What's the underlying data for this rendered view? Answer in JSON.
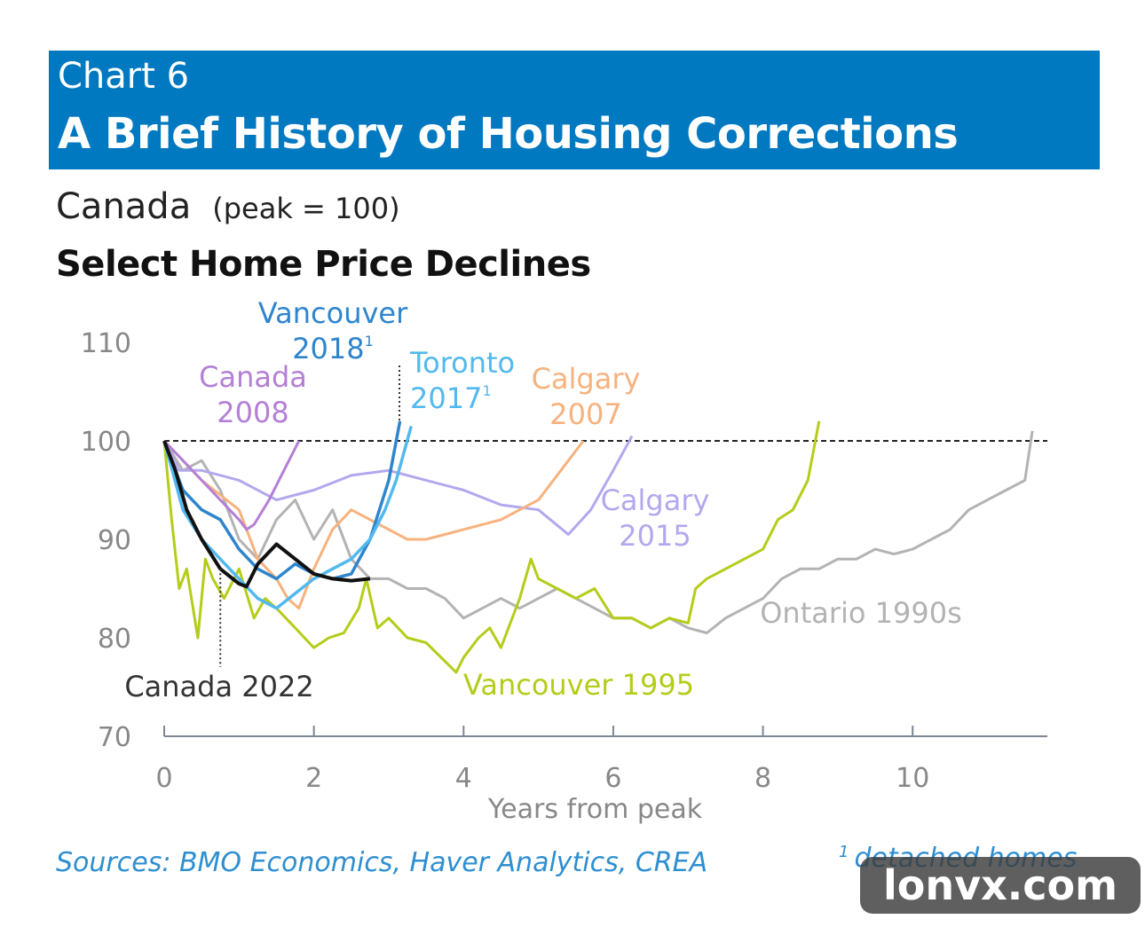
{
  "header": {
    "chart_number": "Chart 6",
    "title": "A Brief History of Housing Corrections"
  },
  "subtitle": {
    "region": "Canada",
    "note": "(peak = 100)"
  },
  "subtitle2": "Select Home Price Declines",
  "footer": {
    "sources": "Sources: BMO Economics, Haver Analytics, CREA",
    "footnote_mark": "1",
    "footnote": "detached homes"
  },
  "watermark": "lonvx.com",
  "colors": {
    "banner": "#0079c1",
    "vancouver_1995": "#b5cc1a",
    "ontario_1990s": "#b3b3b3",
    "calgary_2015": "#b3a8ee",
    "calgary_2007": "#f7b27d",
    "canada_2008": "#b47fd6",
    "vancouver_2018": "#2f85cc",
    "toronto_2017": "#52b9ee",
    "canada_2022": "#111111"
  },
  "chart_data": {
    "type": "line",
    "title": "Select Home Price Declines",
    "xlabel": "Years from peak",
    "ylabel": "",
    "xlim": [
      0,
      11.8
    ],
    "ylim": [
      70,
      110
    ],
    "x_ticks": [
      0,
      2,
      4,
      6,
      8,
      10
    ],
    "y_ticks": [
      70,
      80,
      90,
      100,
      110
    ],
    "x_tick_labels": [
      "0",
      "2",
      "4",
      "6",
      "8",
      "10"
    ],
    "y_tick_labels": [
      "70",
      "80",
      "90",
      "100",
      "110"
    ],
    "reference_line": {
      "y": 100,
      "style": "dashed"
    },
    "annotations": [
      {
        "series": "Canada 2022",
        "note": "dotted leader to line"
      },
      {
        "series": "Vancouver 2018",
        "note": "dotted leader to line"
      }
    ],
    "series": [
      {
        "name": "Ontario 1990s",
        "label_lines": [
          "Ontario 1990s"
        ],
        "footnote": "",
        "x": [
          0,
          0.25,
          0.5,
          0.75,
          1,
          1.25,
          1.5,
          1.75,
          2,
          2.25,
          2.5,
          2.75,
          3,
          3.25,
          3.5,
          3.75,
          4,
          4.25,
          4.5,
          4.75,
          5,
          5.25,
          5.5,
          5.75,
          6,
          6.25,
          6.5,
          6.75,
          7,
          7.25,
          7.5,
          7.75,
          8,
          8.25,
          8.5,
          8.75,
          9,
          9.25,
          9.5,
          9.75,
          10,
          10.25,
          10.5,
          10.75,
          11,
          11.25,
          11.5,
          11.6
        ],
        "y": [
          100,
          97,
          98,
          95,
          90,
          88,
          92,
          94,
          90,
          93,
          88,
          86,
          86,
          85,
          85,
          84,
          82,
          83,
          84,
          83,
          84,
          85,
          84,
          83,
          82,
          82,
          81,
          82,
          81,
          80.5,
          82,
          83,
          84,
          86,
          87,
          87,
          88,
          88,
          89,
          88.5,
          89,
          90,
          91,
          93,
          94,
          95,
          96,
          101
        ]
      },
      {
        "name": "Vancouver 1995",
        "label_lines": [
          "Vancouver 1995"
        ],
        "footnote": "",
        "x": [
          0,
          0.1,
          0.2,
          0.3,
          0.45,
          0.55,
          0.65,
          0.8,
          1,
          1.2,
          1.35,
          1.5,
          1.75,
          2,
          2.2,
          2.4,
          2.6,
          2.7,
          2.85,
          3,
          3.25,
          3.5,
          3.7,
          3.9,
          4,
          4.2,
          4.35,
          4.5,
          4.75,
          4.9,
          5,
          5.25,
          5.5,
          5.75,
          6,
          6.25,
          6.5,
          6.75,
          7,
          7.1,
          7.25,
          7.5,
          7.75,
          8,
          8.2,
          8.4,
          8.6,
          8.75
        ],
        "y": [
          100,
          92,
          85,
          87,
          80,
          88,
          86,
          84,
          87,
          82,
          84,
          83,
          81,
          79,
          80,
          80.5,
          83,
          86,
          81,
          82,
          80,
          79.5,
          78,
          76.5,
          78,
          80,
          81,
          79,
          84,
          88,
          86,
          85,
          84,
          85,
          82,
          82,
          81,
          82,
          81.5,
          85,
          86,
          87,
          88,
          89,
          92,
          93,
          96,
          102
        ]
      },
      {
        "name": "Calgary 2015",
        "label_lines": [
          "Calgary",
          "2015"
        ],
        "footnote": "",
        "x": [
          0,
          0.2,
          0.5,
          1,
          1.5,
          2,
          2.5,
          3,
          3.5,
          4,
          4.5,
          5,
          5.4,
          5.7,
          6,
          6.25
        ],
        "y": [
          100,
          97,
          97,
          96,
          94,
          95,
          96.5,
          97,
          96,
          95,
          93.5,
          93,
          90.5,
          93,
          97,
          100.5
        ]
      },
      {
        "name": "Calgary 2007",
        "label_lines": [
          "Calgary",
          "2007"
        ],
        "footnote": "",
        "x": [
          0,
          0.5,
          1,
          1.25,
          1.5,
          1.65,
          1.8,
          2,
          2.25,
          2.5,
          2.75,
          3,
          3.25,
          3.5,
          4,
          4.5,
          5,
          5.3,
          5.6
        ],
        "y": [
          100,
          96,
          93,
          88,
          86,
          84,
          83,
          87,
          91,
          93,
          92,
          91,
          90,
          90,
          91,
          92,
          94,
          97,
          100
        ]
      },
      {
        "name": "Canada 2008",
        "label_lines": [
          "Canada",
          "2008"
        ],
        "footnote": "",
        "x": [
          0,
          0.25,
          0.5,
          0.75,
          1,
          1.1,
          1.2,
          1.4,
          1.6,
          1.8
        ],
        "y": [
          100,
          98,
          96,
          94,
          92,
          91,
          91.5,
          94,
          97,
          100
        ]
      },
      {
        "name": "Vancouver 2018",
        "label_lines": [
          "Vancouver",
          "2018"
        ],
        "footnote": "1",
        "x": [
          0,
          0.25,
          0.5,
          0.75,
          1,
          1.25,
          1.5,
          1.75,
          2,
          2.25,
          2.5,
          2.75,
          3,
          3.15
        ],
        "y": [
          100,
          95,
          93,
          92,
          89,
          87,
          86,
          87.5,
          86.5,
          86,
          86.5,
          90,
          96,
          102
        ]
      },
      {
        "name": "Toronto 2017",
        "label_lines": [
          "Toronto",
          "2017"
        ],
        "footnote": "1",
        "x": [
          0,
          0.25,
          0.5,
          0.75,
          1,
          1.25,
          1.5,
          1.75,
          2,
          2.25,
          2.5,
          2.75,
          2.95,
          3.1,
          3.3
        ],
        "y": [
          100,
          93,
          90,
          88,
          86,
          84,
          83,
          84.5,
          86,
          87,
          88,
          90,
          93,
          96,
          101.5
        ]
      },
      {
        "name": "Canada 2022",
        "label_lines": [
          "Canada 2022"
        ],
        "footnote": "",
        "x": [
          0,
          0.15,
          0.3,
          0.5,
          0.75,
          1,
          1.1,
          1.25,
          1.5,
          1.75,
          2,
          2.25,
          2.5,
          2.75
        ],
        "y": [
          100,
          97,
          93,
          90,
          87,
          85.5,
          85.2,
          87.5,
          89.5,
          88,
          86.5,
          86,
          85.8,
          86
        ]
      }
    ]
  }
}
